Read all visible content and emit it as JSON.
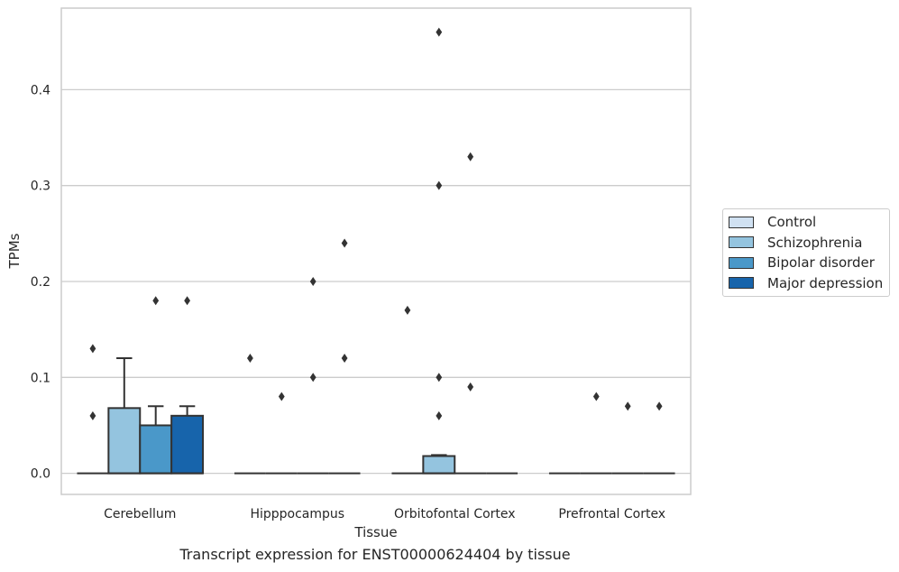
{
  "chart_data": {
    "type": "box",
    "categories": [
      "Cerebellum",
      "Hipppocampus",
      "Orbitofontal Cortex",
      "Prefrontal Cortex"
    ],
    "xlabel": "Tissue",
    "ylabel": "TPMs",
    "ylim": [
      -0.022,
      0.485
    ],
    "yticks": [
      0.0,
      0.1,
      0.2,
      0.3,
      0.4
    ],
    "ytick_labels": [
      "0.0",
      "0.1",
      "0.2",
      "0.3",
      "0.4"
    ],
    "grid": "horizontal",
    "legend_position": "right",
    "series": [
      {
        "name": "Control",
        "color": "#d0e1f2",
        "boxes": [
          {
            "q1": 0,
            "median": 0,
            "q3": 0,
            "whislo": 0,
            "whishi": 0,
            "fliers": [
              0.06,
              0.13
            ]
          },
          {
            "q1": 0,
            "median": 0,
            "q3": 0,
            "whislo": 0,
            "whishi": 0,
            "fliers": [
              0.12
            ]
          },
          {
            "q1": 0,
            "median": 0,
            "q3": 0,
            "whislo": 0,
            "whishi": 0,
            "fliers": [
              0.17
            ]
          },
          {
            "q1": 0,
            "median": 0,
            "q3": 0,
            "whislo": 0,
            "whishi": 0,
            "fliers": []
          }
        ]
      },
      {
        "name": "Schizophrenia",
        "color": "#94c4df",
        "boxes": [
          {
            "q1": 0,
            "median": 0,
            "q3": 0.068,
            "whislo": 0,
            "whishi": 0.12,
            "fliers": []
          },
          {
            "q1": 0,
            "median": 0,
            "q3": 0,
            "whislo": 0,
            "whishi": 0,
            "fliers": [
              0.08
            ]
          },
          {
            "q1": 0,
            "median": 0,
            "q3": 0.018,
            "whislo": 0,
            "whishi": 0.019,
            "fliers": [
              0.06,
              0.1,
              0.3,
              0.46
            ]
          },
          {
            "q1": 0,
            "median": 0,
            "q3": 0,
            "whislo": 0,
            "whishi": 0,
            "fliers": [
              0.08
            ]
          }
        ]
      },
      {
        "name": "Bipolar disorder",
        "color": "#4a98c9",
        "boxes": [
          {
            "q1": 0,
            "median": 0,
            "q3": 0.05,
            "whislo": 0,
            "whishi": 0.07,
            "fliers": [
              0.18
            ]
          },
          {
            "q1": 0,
            "median": 0,
            "q3": 0,
            "whislo": 0,
            "whishi": 0,
            "fliers": [
              0.1,
              0.2
            ]
          },
          {
            "q1": 0,
            "median": 0,
            "q3": 0,
            "whislo": 0,
            "whishi": 0,
            "fliers": [
              0.09,
              0.33
            ]
          },
          {
            "q1": 0,
            "median": 0,
            "q3": 0,
            "whislo": 0,
            "whishi": 0,
            "fliers": [
              0.07
            ]
          }
        ]
      },
      {
        "name": "Major depression",
        "color": "#1764ab",
        "boxes": [
          {
            "q1": 0,
            "median": 0,
            "q3": 0.06,
            "whislo": 0,
            "whishi": 0.07,
            "fliers": [
              0.18
            ]
          },
          {
            "q1": 0,
            "median": 0,
            "q3": 0,
            "whislo": 0,
            "whishi": 0,
            "fliers": [
              0.12,
              0.24
            ]
          },
          {
            "q1": 0,
            "median": 0,
            "q3": 0,
            "whislo": 0,
            "whishi": 0,
            "fliers": []
          },
          {
            "q1": 0,
            "median": 0,
            "q3": 0,
            "whislo": 0,
            "whishi": 0,
            "fliers": [
              0.07
            ]
          }
        ]
      }
    ],
    "caption": "Transcript expression for ENST00000624404 by tissue"
  }
}
